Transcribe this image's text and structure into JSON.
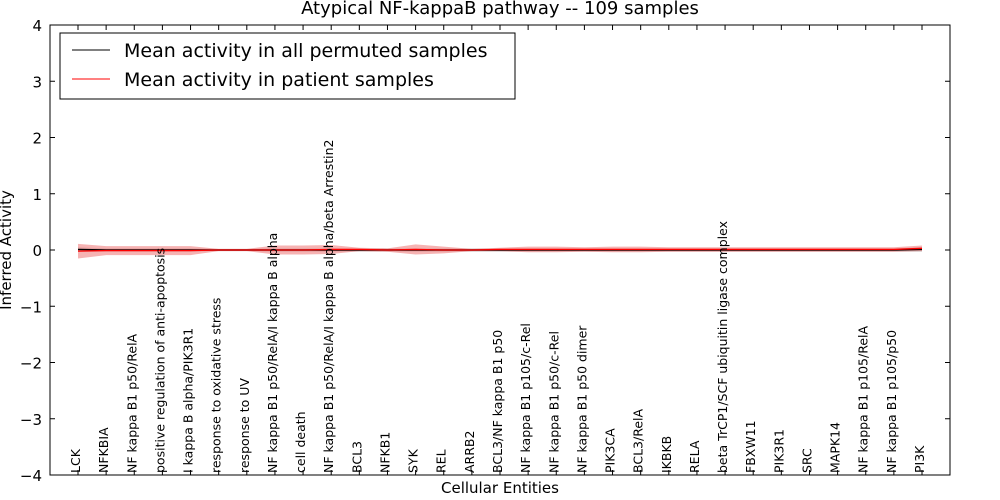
{
  "chart_data": {
    "type": "line",
    "title": "Atypical NF-kappaB pathway -- 109 samples",
    "xlabel": "Cellular Entities",
    "ylabel": "Inferred Activity",
    "ylim": [
      -4,
      4
    ],
    "yticks": [
      -4,
      -3,
      -2,
      -1,
      0,
      1,
      2,
      3,
      4
    ],
    "ytick_labels": [
      "−4",
      "−3",
      "−2",
      "−1",
      "0",
      "1",
      "2",
      "3",
      "4"
    ],
    "legend_position": "top-left",
    "categories": [
      "LCK",
      "NFKBIA",
      "NF kappa B1 p50/RelA",
      "positive regulation of anti-apoptosis",
      "I kappa B alpha/PIK3R1",
      "response to oxidative stress",
      "response to UV",
      "NF kappa B1 p50/RelA/I kappa B alpha",
      "cell death",
      "NF kappa B1 p50/RelA/I kappa B alpha/beta Arrestin2",
      "BCL3",
      "NFKB1",
      "SYK",
      "REL",
      "ARRB2",
      "BCL3/NF kappa B1 p50",
      "NF kappa B1 p105/c-Rel",
      "NF kappa B1 p50/c-Rel",
      "NF kappa B1 p50 dimer",
      "PIK3CA",
      "BCL3/RelA",
      "IKBKB",
      "RELA",
      "beta TrCP1/SCF ubiquitin ligase complex",
      "FBXW11",
      "PIK3R1",
      "SRC",
      "MAPK14",
      "NF kappa B1 p105/RelA",
      "NF kappa B1 p105/p50",
      "PI3K"
    ],
    "tick_display": [
      "LCK",
      "NFKBIA",
      "NF kappa B1 p50/RelA",
      "positive regulation of anti-apoptosis",
      "I kappa B alpha/PIK3R1",
      "response to oxidative stress",
      "response to UV",
      "NF kappa B1 p50/RelA/I kappa B alpha",
      "cell death",
      "NF kappa B1 p50/RelA/I kappa B alpha/beta Arrestin2",
      "BCL3",
      "NFKB1",
      "SYK",
      "REL",
      "ARRB2",
      "BCL3/NF kappa B1 p50",
      "NF kappa B1 p105/c-Rel",
      "NF kappa B1 p50/c-Rel",
      "NF kappa B1 p50 dimer",
      "PIK3CA",
      "BCL3/RelA",
      "IKBKB",
      "RELA",
      "beta TrCP1/SCF ubiquitin ligase complex",
      "FBXW11",
      "PIK3R1",
      "SRC",
      "MAPK14",
      "NF kappa B1 p105/RelA",
      "NF kappa B1 p105/p50",
      "PI3K"
    ],
    "series": [
      {
        "name": "Mean activity in all permuted samples",
        "color": "#000000",
        "band_color": "#c8c8c8",
        "values": [
          0.01,
          0.0,
          0.0,
          0.0,
          0.0,
          0.0,
          0.0,
          0.0,
          0.0,
          0.0,
          0.0,
          0.0,
          0.0,
          0.0,
          0.0,
          0.0,
          0.0,
          0.0,
          0.0,
          0.0,
          0.0,
          0.0,
          0.0,
          0.0,
          0.0,
          0.0,
          0.0,
          0.0,
          0.0,
          0.0,
          0.01
        ],
        "spread": [
          0.04,
          0.03,
          0.03,
          0.03,
          0.03,
          0.02,
          0.02,
          0.03,
          0.03,
          0.03,
          0.03,
          0.03,
          0.03,
          0.03,
          0.03,
          0.03,
          0.03,
          0.03,
          0.03,
          0.03,
          0.03,
          0.03,
          0.03,
          0.03,
          0.03,
          0.03,
          0.03,
          0.03,
          0.03,
          0.03,
          0.04
        ]
      },
      {
        "name": "Mean activity in patient samples",
        "color": "#ff0000",
        "band_color": "#f08080",
        "values": [
          -0.02,
          -0.01,
          -0.01,
          -0.01,
          -0.01,
          0.0,
          0.0,
          0.0,
          0.0,
          0.01,
          0.01,
          0.0,
          0.01,
          0.0,
          0.0,
          0.01,
          0.01,
          0.01,
          0.01,
          0.01,
          0.01,
          0.01,
          0.01,
          0.01,
          0.01,
          0.01,
          0.01,
          0.01,
          0.01,
          0.01,
          0.03
        ],
        "spread": [
          0.13,
          0.08,
          0.08,
          0.08,
          0.08,
          0.02,
          0.02,
          0.08,
          0.08,
          0.08,
          0.03,
          0.03,
          0.09,
          0.06,
          0.02,
          0.03,
          0.05,
          0.05,
          0.04,
          0.05,
          0.05,
          0.04,
          0.04,
          0.04,
          0.04,
          0.04,
          0.04,
          0.04,
          0.04,
          0.04,
          0.05
        ]
      }
    ]
  }
}
